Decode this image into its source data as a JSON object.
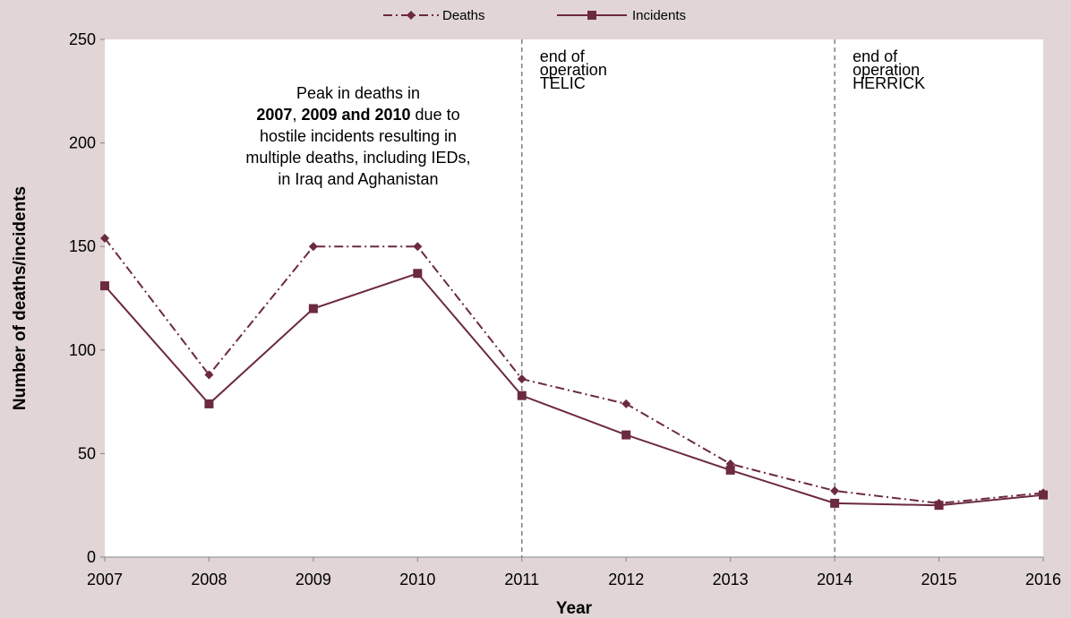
{
  "chart_data": {
    "type": "line",
    "xlabel": "Year",
    "ylabel": "Number of deaths/incidents",
    "ylim": [
      0,
      250
    ],
    "yticks": [
      0,
      50,
      100,
      150,
      200,
      250
    ],
    "xlim": [
      2007,
      2016
    ],
    "x": [
      2007,
      2008,
      2009,
      2010,
      2011,
      2012,
      2013,
      2014,
      2015,
      2016
    ],
    "legend_position": "top-center",
    "grid": false,
    "series": [
      {
        "name": "Deaths",
        "values": [
          154,
          88,
          150,
          150,
          86,
          74,
          45,
          32,
          26,
          31
        ],
        "color": "#6b2a3e",
        "line_style": "dash-dot",
        "marker": "diamond"
      },
      {
        "name": "Incidents",
        "values": [
          131,
          74,
          120,
          137,
          78,
          59,
          42,
          26,
          25,
          30
        ],
        "color": "#6b2a3e",
        "line_style": "solid",
        "marker": "square"
      }
    ],
    "reference_lines": [
      {
        "x": 2011,
        "label_lines": [
          "end of",
          "operation",
          "TELIC"
        ]
      },
      {
        "x": 2014,
        "label_lines": [
          "end of",
          "operation",
          "HERRICK"
        ]
      }
    ],
    "annotation": {
      "lines": [
        [
          {
            "text": "Peak in deaths in",
            "bold": false
          }
        ],
        [
          {
            "text": "2007",
            "bold": true
          },
          {
            "text": ", ",
            "bold": false
          },
          {
            "text": "2009 and 2010",
            "bold": true
          },
          {
            "text": " due to",
            "bold": false
          }
        ],
        [
          {
            "text": "hostile incidents resulting in",
            "bold": false
          }
        ],
        [
          {
            "text": "multiple deaths, including IEDs,",
            "bold": false
          }
        ],
        [
          {
            "text": "in Iraq and Aghanistan",
            "bold": false
          }
        ]
      ]
    },
    "plot_background": "#ffffff",
    "page_background": "#e1d5d6",
    "reference_line_color": "#808080"
  }
}
